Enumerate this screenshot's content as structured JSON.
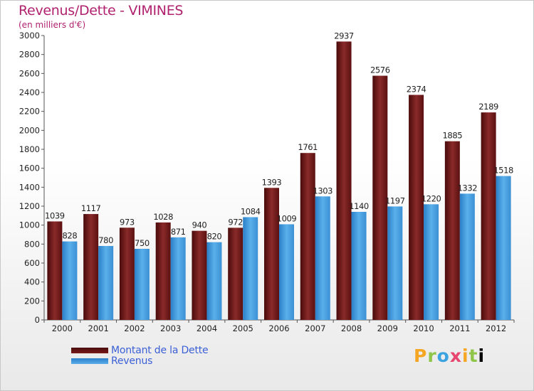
{
  "header": {
    "title": "Revenus/Dette - VIMINES",
    "subtitle": "(en milliers d'€)"
  },
  "logo": {
    "text": "Proxiti"
  },
  "colors": {
    "debt_dark": "#4a0a0a",
    "debt_light": "#8a2a2a",
    "revenue_dark": "#2a7fc8",
    "revenue_light": "#5ab0ea",
    "title": "#b0226e",
    "legend_text": "#3a5fd6"
  },
  "chart_data": {
    "type": "bar",
    "title": "Revenus/Dette - VIMINES",
    "subtitle": "(en milliers d'€)",
    "categories": [
      "2000",
      "2001",
      "2002",
      "2003",
      "2004",
      "2005",
      "2006",
      "2007",
      "2008",
      "2009",
      "2010",
      "2011",
      "2012"
    ],
    "series": [
      {
        "name": "Montant de la Dette",
        "values": [
          1039,
          1117,
          973,
          1028,
          940,
          972,
          1393,
          1761,
          2937,
          2576,
          2374,
          1885,
          2189
        ]
      },
      {
        "name": "Revenus",
        "values": [
          828,
          780,
          750,
          871,
          820,
          1084,
          1009,
          1303,
          1140,
          1197,
          1220,
          1332,
          1518
        ]
      }
    ],
    "ylim": [
      0,
      3000
    ],
    "ytick_step": 200,
    "grid": false,
    "legend_position": "bottom-left"
  }
}
